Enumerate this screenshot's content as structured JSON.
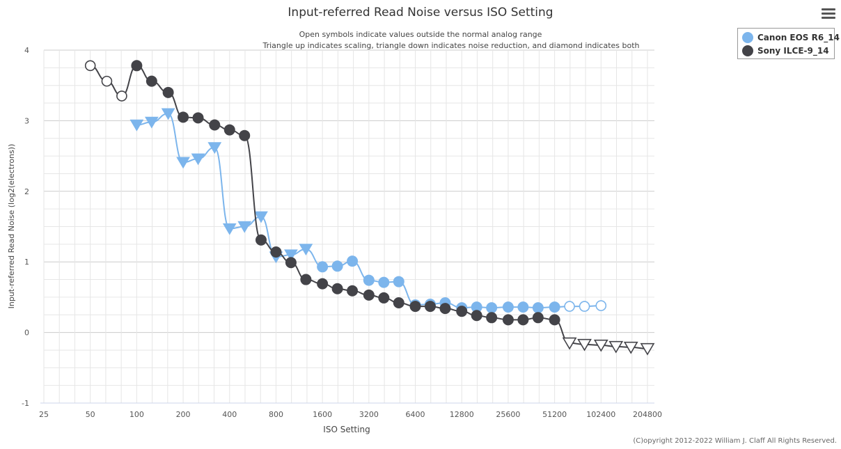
{
  "title": "Input-referred Read Noise versus ISO Setting",
  "subtitle": {
    "line1": "Open symbols indicate values outside the normal analog range",
    "line2": "Triangle up indicates scaling, triangle down indicates noise reduction, and diamond indicates both"
  },
  "menu_icon": "hamburger-menu-icon",
  "copyright": "(C)opyright 2012-2022 William J. Claff All Rights Reserved.",
  "colors": {
    "canon": "#7cb5ec",
    "sony": "#434348",
    "grid": "#e6e6e6",
    "major_grid": "#cccccc",
    "axis": "#ccd6eb"
  },
  "chart_data": {
    "type": "line",
    "title": "Input-referred Read Noise versus ISO Setting",
    "xlabel": "ISO Setting",
    "ylabel": "Input-referred Read Noise (log2(electrons))",
    "x_scale": "log2",
    "xlim": [
      25,
      204800
    ],
    "ylim": [
      -1,
      4
    ],
    "grid": true,
    "legend_position": "top-right",
    "x_ticks": [
      "25",
      "50",
      "100",
      "200",
      "400",
      "800",
      "1600",
      "3200",
      "6400",
      "12800",
      "25600",
      "51200",
      "102400",
      "204800"
    ],
    "y_ticks": [
      "4",
      "3",
      "2",
      "1",
      "0",
      "-1"
    ],
    "series": [
      {
        "name": "Canon EOS R6_14",
        "color": "#7cb5ec",
        "points": [
          {
            "x": 100,
            "y": 2.94,
            "marker": "triangle-down",
            "open": false
          },
          {
            "x": 125,
            "y": 2.98,
            "marker": "triangle-down",
            "open": false
          },
          {
            "x": 160,
            "y": 3.1,
            "marker": "triangle-down",
            "open": false
          },
          {
            "x": 200,
            "y": 2.41,
            "marker": "triangle-down",
            "open": false
          },
          {
            "x": 250,
            "y": 2.46,
            "marker": "triangle-down",
            "open": false
          },
          {
            "x": 320,
            "y": 2.62,
            "marker": "triangle-down",
            "open": false
          },
          {
            "x": 400,
            "y": 1.47,
            "marker": "triangle-down",
            "open": false
          },
          {
            "x": 500,
            "y": 1.5,
            "marker": "triangle-down",
            "open": false
          },
          {
            "x": 640,
            "y": 1.64,
            "marker": "triangle-down",
            "open": false
          },
          {
            "x": 800,
            "y": 1.07,
            "marker": "triangle-down",
            "open": false
          },
          {
            "x": 1000,
            "y": 1.1,
            "marker": "triangle-down",
            "open": false
          },
          {
            "x": 1250,
            "y": 1.18,
            "marker": "triangle-down",
            "open": false
          },
          {
            "x": 1600,
            "y": 0.93,
            "marker": "circle",
            "open": false
          },
          {
            "x": 2000,
            "y": 0.94,
            "marker": "circle",
            "open": false
          },
          {
            "x": 2500,
            "y": 1.01,
            "marker": "circle",
            "open": false
          },
          {
            "x": 3200,
            "y": 0.74,
            "marker": "circle",
            "open": false
          },
          {
            "x": 4000,
            "y": 0.71,
            "marker": "circle",
            "open": false
          },
          {
            "x": 5000,
            "y": 0.72,
            "marker": "circle",
            "open": false
          },
          {
            "x": 6400,
            "y": 0.39,
            "marker": "circle",
            "open": false
          },
          {
            "x": 8000,
            "y": 0.4,
            "marker": "circle",
            "open": false
          },
          {
            "x": 10000,
            "y": 0.42,
            "marker": "circle",
            "open": false
          },
          {
            "x": 12800,
            "y": 0.35,
            "marker": "circle",
            "open": false
          },
          {
            "x": 16000,
            "y": 0.36,
            "marker": "circle",
            "open": false
          },
          {
            "x": 20000,
            "y": 0.35,
            "marker": "circle",
            "open": false
          },
          {
            "x": 25600,
            "y": 0.36,
            "marker": "circle",
            "open": false
          },
          {
            "x": 32000,
            "y": 0.36,
            "marker": "circle",
            "open": false
          },
          {
            "x": 40000,
            "y": 0.35,
            "marker": "circle",
            "open": false
          },
          {
            "x": 51200,
            "y": 0.36,
            "marker": "circle",
            "open": false
          },
          {
            "x": 64000,
            "y": 0.37,
            "marker": "circle",
            "open": true
          },
          {
            "x": 80000,
            "y": 0.37,
            "marker": "circle",
            "open": true
          },
          {
            "x": 102400,
            "y": 0.38,
            "marker": "circle",
            "open": true
          }
        ]
      },
      {
        "name": "Sony ILCE-9_14",
        "color": "#434348",
        "points": [
          {
            "x": 50,
            "y": 3.78,
            "marker": "circle",
            "open": true
          },
          {
            "x": 64,
            "y": 3.56,
            "marker": "circle",
            "open": true
          },
          {
            "x": 80,
            "y": 3.35,
            "marker": "circle",
            "open": true
          },
          {
            "x": 100,
            "y": 3.78,
            "marker": "circle",
            "open": false
          },
          {
            "x": 125,
            "y": 3.56,
            "marker": "circle",
            "open": false
          },
          {
            "x": 160,
            "y": 3.4,
            "marker": "circle",
            "open": false
          },
          {
            "x": 200,
            "y": 3.05,
            "marker": "circle",
            "open": false
          },
          {
            "x": 250,
            "y": 3.04,
            "marker": "circle",
            "open": false
          },
          {
            "x": 320,
            "y": 2.94,
            "marker": "circle",
            "open": false
          },
          {
            "x": 400,
            "y": 2.87,
            "marker": "circle",
            "open": false
          },
          {
            "x": 500,
            "y": 2.79,
            "marker": "circle",
            "open": false
          },
          {
            "x": 640,
            "y": 1.31,
            "marker": "circle",
            "open": false
          },
          {
            "x": 800,
            "y": 1.14,
            "marker": "circle",
            "open": false
          },
          {
            "x": 1000,
            "y": 0.99,
            "marker": "circle",
            "open": false
          },
          {
            "x": 1250,
            "y": 0.75,
            "marker": "circle",
            "open": false
          },
          {
            "x": 1600,
            "y": 0.69,
            "marker": "circle",
            "open": false
          },
          {
            "x": 2000,
            "y": 0.62,
            "marker": "circle",
            "open": false
          },
          {
            "x": 2500,
            "y": 0.59,
            "marker": "circle",
            "open": false
          },
          {
            "x": 3200,
            "y": 0.53,
            "marker": "circle",
            "open": false
          },
          {
            "x": 4000,
            "y": 0.49,
            "marker": "circle",
            "open": false
          },
          {
            "x": 5000,
            "y": 0.42,
            "marker": "circle",
            "open": false
          },
          {
            "x": 6400,
            "y": 0.37,
            "marker": "circle",
            "open": false
          },
          {
            "x": 8000,
            "y": 0.37,
            "marker": "circle",
            "open": false
          },
          {
            "x": 10000,
            "y": 0.34,
            "marker": "circle",
            "open": false
          },
          {
            "x": 12800,
            "y": 0.3,
            "marker": "circle",
            "open": false
          },
          {
            "x": 16000,
            "y": 0.24,
            "marker": "circle",
            "open": false
          },
          {
            "x": 20000,
            "y": 0.21,
            "marker": "circle",
            "open": false
          },
          {
            "x": 25600,
            "y": 0.18,
            "marker": "circle",
            "open": false
          },
          {
            "x": 32000,
            "y": 0.18,
            "marker": "circle",
            "open": false
          },
          {
            "x": 40000,
            "y": 0.21,
            "marker": "circle",
            "open": false
          },
          {
            "x": 51200,
            "y": 0.18,
            "marker": "circle",
            "open": false
          },
          {
            "x": 64000,
            "y": -0.15,
            "marker": "triangle-down",
            "open": true
          },
          {
            "x": 80000,
            "y": -0.17,
            "marker": "triangle-down",
            "open": true
          },
          {
            "x": 102400,
            "y": -0.18,
            "marker": "triangle-down",
            "open": true
          },
          {
            "x": 128000,
            "y": -0.2,
            "marker": "triangle-down",
            "open": true
          },
          {
            "x": 160000,
            "y": -0.21,
            "marker": "triangle-down",
            "open": true
          },
          {
            "x": 204800,
            "y": -0.23,
            "marker": "triangle-down",
            "open": true
          }
        ]
      }
    ]
  }
}
